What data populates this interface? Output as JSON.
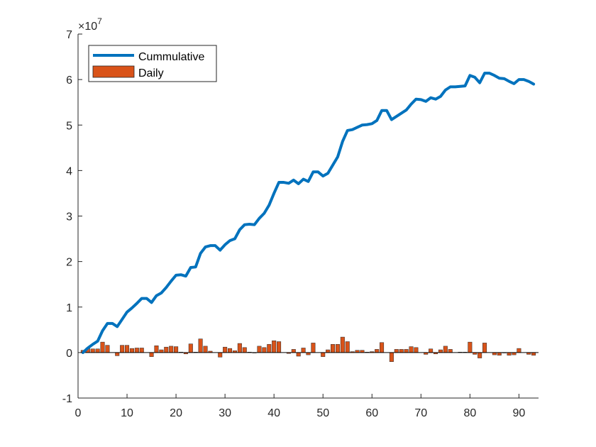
{
  "chart_data": {
    "type": "bar",
    "x_ticks": [
      0,
      10,
      20,
      30,
      40,
      50,
      60,
      70,
      80,
      90
    ],
    "y_ticks": [
      -1,
      0,
      1,
      2,
      3,
      4,
      5,
      6,
      7
    ],
    "xlim": [
      0,
      94
    ],
    "ylim": [
      -1,
      7
    ],
    "y_exponent": {
      "base": "10",
      "power": "7",
      "times": "×"
    },
    "grid": false,
    "legend_position": "top-left",
    "colors": {
      "cumulative": "#0072BD",
      "daily": "#D95319",
      "axis": "#262626"
    },
    "series": [
      {
        "name": "Cummulative",
        "kind": "line",
        "x": [
          1,
          2,
          3,
          4,
          5,
          6,
          7,
          8,
          9,
          10,
          11,
          12,
          13,
          14,
          15,
          16,
          17,
          18,
          19,
          20,
          21,
          22,
          23,
          24,
          25,
          26,
          27,
          28,
          29,
          30,
          31,
          32,
          33,
          34,
          35,
          36,
          37,
          38,
          39,
          40,
          41,
          42,
          43,
          44,
          45,
          46,
          47,
          48,
          49,
          50,
          51,
          52,
          53,
          54,
          55,
          56,
          57,
          58,
          59,
          60,
          61,
          62,
          63,
          64,
          65,
          66,
          67,
          68,
          69,
          70,
          71,
          72,
          73,
          74,
          75,
          76,
          77,
          78,
          79,
          80,
          81,
          82,
          83,
          84,
          85,
          86,
          87,
          88,
          89,
          90,
          91,
          92,
          93
        ],
        "values": [
          0.0,
          0.1,
          0.18,
          0.25,
          0.48,
          0.64,
          0.64,
          0.57,
          0.73,
          0.89,
          0.98,
          1.08,
          1.19,
          1.19,
          1.1,
          1.25,
          1.31,
          1.43,
          1.57,
          1.7,
          1.71,
          1.68,
          1.87,
          1.88,
          2.18,
          2.32,
          2.35,
          2.35,
          2.25,
          2.37,
          2.46,
          2.5,
          2.7,
          2.81,
          2.82,
          2.81,
          2.95,
          3.06,
          3.24,
          3.5,
          3.74,
          3.74,
          3.72,
          3.79,
          3.71,
          3.81,
          3.76,
          3.97,
          3.97,
          3.88,
          3.94,
          4.12,
          4.3,
          4.64,
          4.88,
          4.9,
          4.95,
          5.0,
          5.01,
          5.03,
          5.1,
          5.32,
          5.32,
          5.12,
          5.19,
          5.26,
          5.33,
          5.46,
          5.57,
          5.56,
          5.52,
          5.6,
          5.57,
          5.63,
          5.77,
          5.84,
          5.84,
          5.85,
          5.86,
          6.09,
          6.05,
          5.93,
          6.14,
          6.14,
          6.09,
          6.03,
          6.02,
          5.96,
          5.91,
          6.0,
          6.0,
          5.96,
          5.9
        ]
      },
      {
        "name": "Daily",
        "kind": "bar",
        "x": [
          1,
          2,
          3,
          4,
          5,
          6,
          7,
          8,
          9,
          10,
          11,
          12,
          13,
          14,
          15,
          16,
          17,
          18,
          19,
          20,
          21,
          22,
          23,
          24,
          25,
          26,
          27,
          28,
          29,
          30,
          31,
          32,
          33,
          34,
          35,
          36,
          37,
          38,
          39,
          40,
          41,
          42,
          43,
          44,
          45,
          46,
          47,
          48,
          49,
          50,
          51,
          52,
          53,
          54,
          55,
          56,
          57,
          58,
          59,
          60,
          61,
          62,
          63,
          64,
          65,
          66,
          67,
          68,
          69,
          70,
          71,
          72,
          73,
          74,
          75,
          76,
          77,
          78,
          79,
          80,
          81,
          82,
          83,
          84,
          85,
          86,
          87,
          88,
          89,
          90,
          91,
          92,
          93
        ],
        "values": [
          0.05,
          0.1,
          0.08,
          0.08,
          0.23,
          0.16,
          0.0,
          -0.07,
          0.16,
          0.16,
          0.09,
          0.1,
          0.1,
          0.0,
          -0.09,
          0.15,
          0.06,
          0.12,
          0.14,
          0.13,
          0.01,
          -0.03,
          0.19,
          0.01,
          0.3,
          0.14,
          0.03,
          0.0,
          -0.1,
          0.12,
          0.09,
          0.04,
          0.2,
          0.11,
          0.01,
          -0.01,
          0.14,
          0.11,
          0.18,
          0.26,
          0.24,
          0.0,
          -0.02,
          0.07,
          -0.08,
          0.1,
          -0.05,
          0.21,
          0.0,
          -0.09,
          0.06,
          0.18,
          0.18,
          0.34,
          0.24,
          0.02,
          0.05,
          0.05,
          0.01,
          0.02,
          0.07,
          0.22,
          0.0,
          -0.2,
          0.07,
          0.07,
          0.07,
          0.13,
          0.11,
          0.0,
          -0.04,
          0.08,
          -0.03,
          0.06,
          0.14,
          0.07,
          0.0,
          0.01,
          0.01,
          0.23,
          -0.04,
          -0.12,
          0.21,
          0.0,
          -0.05,
          -0.06,
          -0.01,
          -0.06,
          -0.05,
          0.09,
          0.0,
          -0.04,
          -0.06
        ]
      }
    ]
  }
}
